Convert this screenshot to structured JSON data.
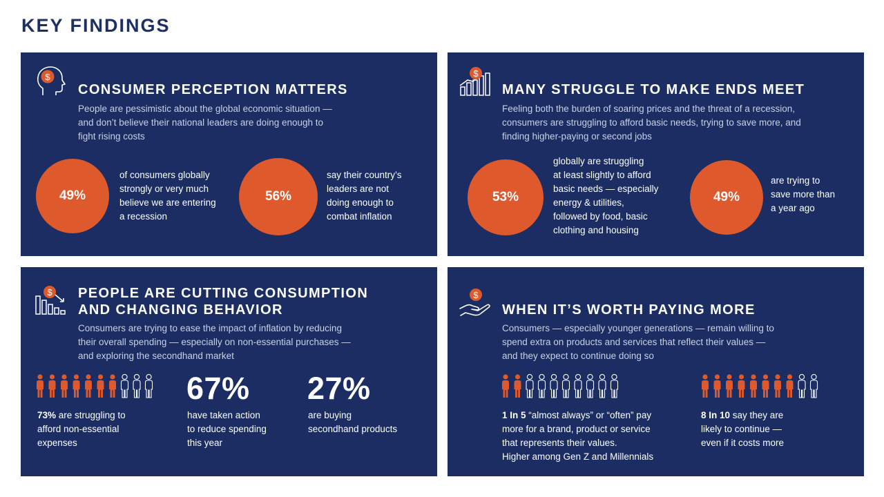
{
  "page_title": "KEY FINDINGS",
  "panels": {
    "p1": {
      "title": "CONSUMER PERCEPTION MATTERS",
      "desc": [
        "People are pessimistic about the global economic situation —",
        "and don’t believe their national leaders are doing enough to",
        "fight rising costs"
      ],
      "stat1": {
        "value": "49%",
        "lines": [
          "of consumers globally",
          "strongly or very much",
          "believe we are entering",
          "a recession"
        ]
      },
      "stat2": {
        "value": "56%",
        "lines": [
          "say their country’s",
          "leaders are not",
          "doing enough to",
          "combat inflation"
        ]
      }
    },
    "p2": {
      "title": "MANY STRUGGLE TO MAKE ENDS MEET",
      "desc": [
        "Feeling both the burden of soaring prices and the threat of a recession,",
        "consumers are struggling to afford basic needs, trying to save more, and",
        "finding higher-paying or second jobs"
      ],
      "stat1": {
        "value": "53%",
        "lines": [
          "globally are struggling",
          "at least slightly to afford",
          "basic needs — especially",
          "energy & utilities,",
          "followed by food, basic",
          "clothing and housing"
        ]
      },
      "stat2": {
        "value": "49%",
        "lines": [
          "are trying to",
          "save more than",
          "a year ago"
        ]
      }
    },
    "p3": {
      "title_lines": [
        "PEOPLE ARE CUTTING CONSUMPTION",
        "AND CHANGING BEHAVIOR"
      ],
      "desc": [
        "Consumers are trying to ease the impact of inflation by reducing",
        "their overall spending — especially on non-essential purchases —",
        "and exploring the secondhand market"
      ],
      "stat1": {
        "bold": "73%",
        "line1_rest": " are struggling to",
        "lines": [
          "afford non-essential",
          "expenses"
        ],
        "people_filled_fraction": 0.73
      },
      "stat2": {
        "value": "67%",
        "lines": [
          "have taken action",
          "to reduce spending",
          "this year"
        ]
      },
      "stat3": {
        "value": "27%",
        "lines": [
          "are buying",
          "secondhand products"
        ]
      }
    },
    "p4": {
      "title": "WHEN IT’S WORTH PAYING MORE",
      "desc": [
        "Consumers — especially younger generations — remain willing to",
        "spend extra on products and services that reflect their values —",
        "and they expect to continue doing so"
      ],
      "stat1": {
        "bold": "1 In 5",
        "line1_rest": " “almost always” or “often” pay",
        "lines": [
          "more for a brand, product or service",
          "that represents their values.",
          "Higher among Gen Z and Millennials"
        ],
        "people_filled": 2,
        "people_total": 10
      },
      "stat2": {
        "bold": "8 In 10",
        "line1_rest": " say they are",
        "lines": [
          "likely to continue —",
          "even if it costs more"
        ],
        "people_filled": 8,
        "people_total": 10
      }
    }
  },
  "icons": {
    "p1": "head-dollar-icon",
    "p2": "rising-bar-chart-dollar-icon",
    "p3": "falling-bar-chart-dollar-icon",
    "p4": "hand-dollar-icon"
  },
  "colors": {
    "panel": "#1b2d62",
    "accent": "#de5a2c",
    "title": "#1e2f63",
    "text": "#ffffff",
    "muted_text": "#c9d1e4"
  }
}
